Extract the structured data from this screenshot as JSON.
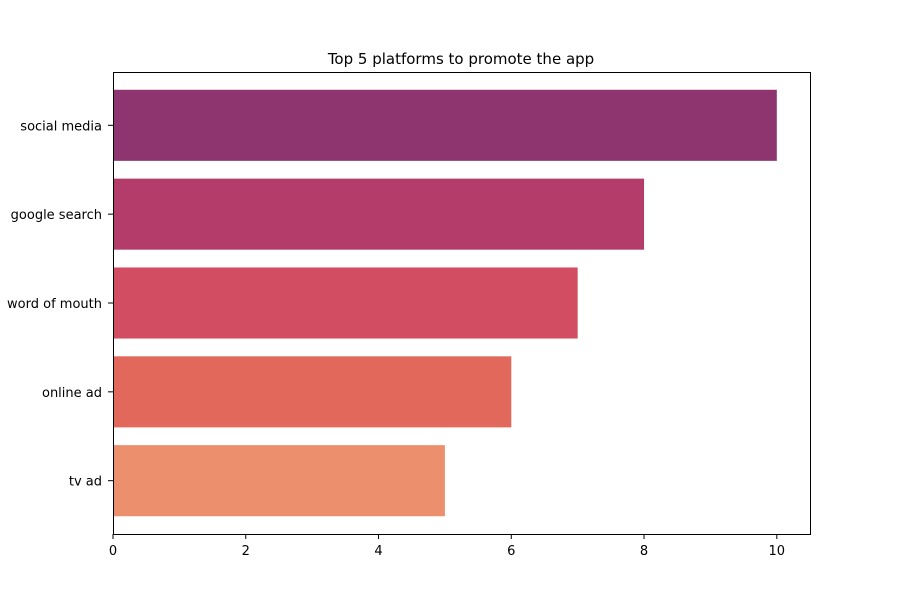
{
  "chart_data": {
    "type": "bar",
    "orientation": "horizontal",
    "title": "Top 5 platforms to promote the app",
    "xlabel": "",
    "ylabel": "",
    "categories": [
      "social media",
      "google search",
      "word of mouth",
      "online ad",
      "tv ad"
    ],
    "values": [
      10,
      8,
      7,
      6,
      5
    ],
    "colors": [
      "#8e3570",
      "#b33c6b",
      "#d34d62",
      "#e2685c",
      "#eb8f6d"
    ],
    "xlim": [
      0,
      10.5
    ],
    "xticks": [
      0,
      2,
      4,
      6,
      8,
      10
    ],
    "grid": false,
    "legend": "none"
  }
}
